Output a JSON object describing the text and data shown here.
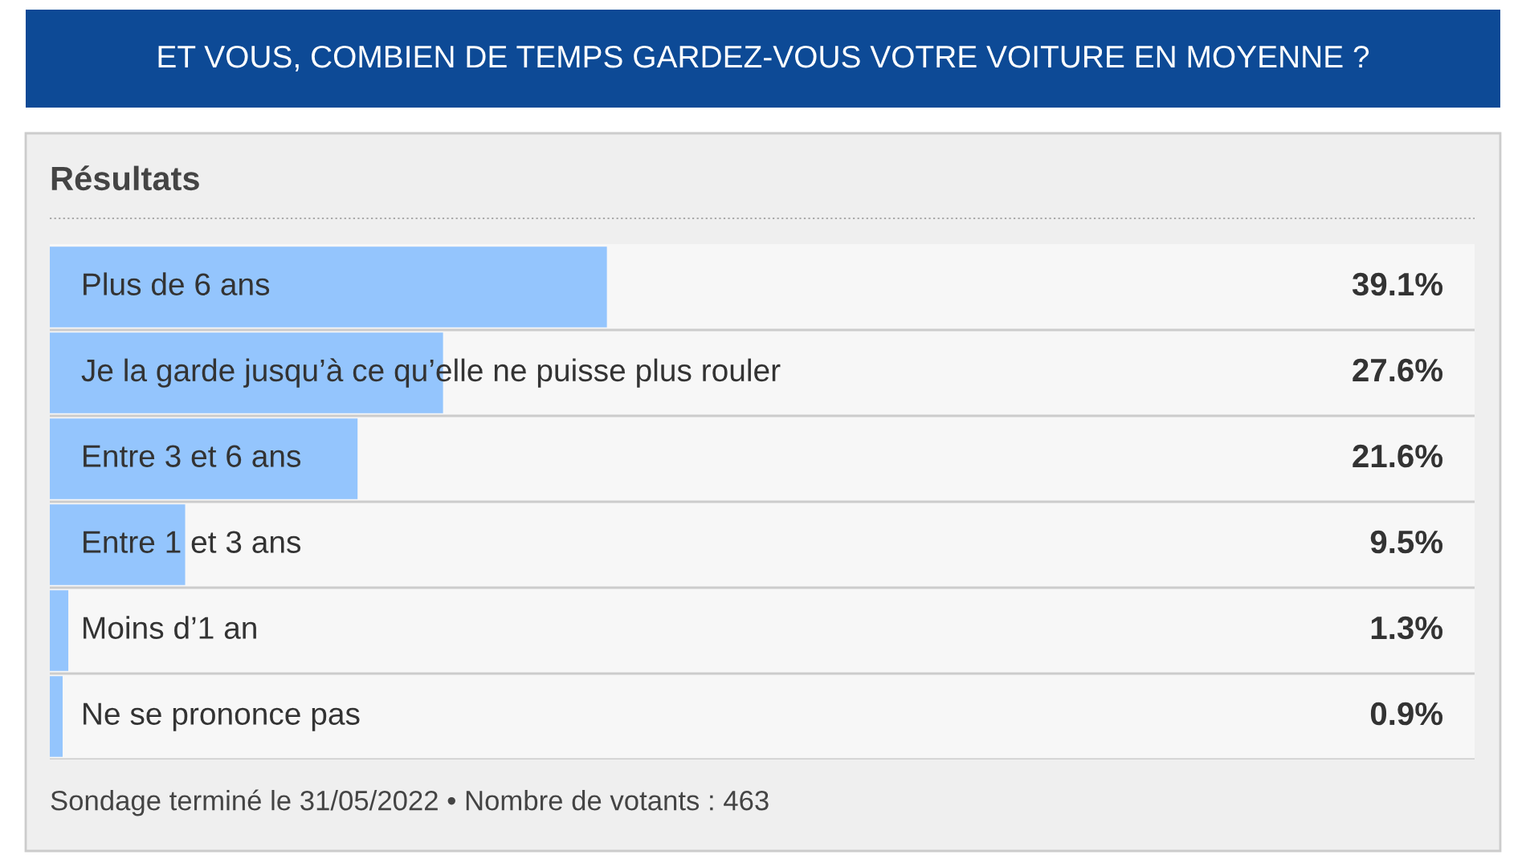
{
  "chart_data": {
    "type": "bar",
    "orientation": "horizontal",
    "title": "ET VOUS, COMBIEN DE TEMPS GARDEZ-VOUS VOTRE VOITURE EN MOYENNE ?",
    "subtitle": "Résultats",
    "categories": [
      "Plus de 6 ans",
      "Je la garde jusqu’à ce qu’elle ne puisse plus rouler",
      "Entre 3 et 6 ans",
      "Entre 1 et 3 ans",
      "Moins d’1 an",
      "Ne se prononce pas"
    ],
    "values": [
      39.1,
      27.6,
      21.6,
      9.5,
      1.3,
      0.9
    ],
    "value_labels": [
      "39.1%",
      "27.6%",
      "21.6%",
      "9.5%",
      "1.3%",
      "0.9%"
    ],
    "color": "#94c5fd",
    "xlim": [
      0,
      100
    ],
    "tick_labels": "y",
    "annotations": [
      "Sondage terminé le 31/05/2022 • Nombre de votants : 463"
    ]
  }
}
